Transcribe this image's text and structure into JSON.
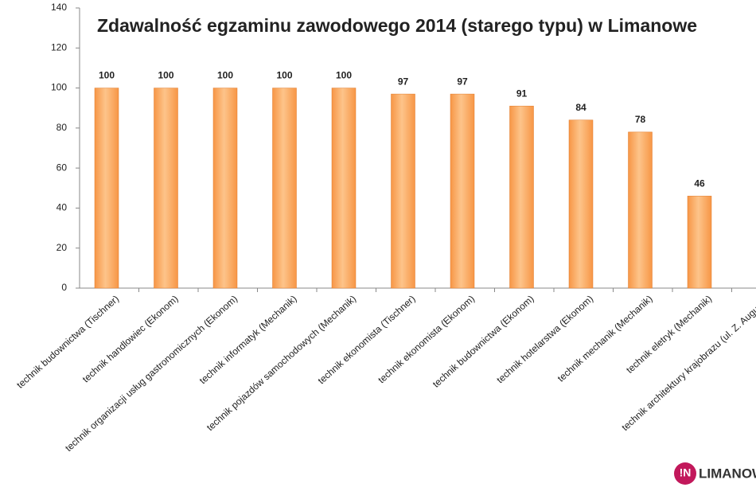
{
  "chart_data": {
    "type": "bar",
    "title": "Zdawalność egzaminu zawodowego 2014 (starego typu)  w Limanowe",
    "categories": [
      "technik budownictwa (Tischner)",
      "technik handlowiec (Ekonom)",
      "technik organizacji usług gastronomicznych (Ekonom)",
      "technik informatyk (Mechanik)",
      "technik pojazdów samochodowych (Mechanik)",
      "technik ekonomista (Tischner)",
      "technik ekonomista (Ekonom)",
      "technik budownictwa (Ekonom)",
      "technik hotelarstwa (Ekonom)",
      "technik mechanik (Mechanik)",
      "technik eletryk (Mechanik)",
      "technik architektury krajobrazu (ul. Z. Augusta)"
    ],
    "values": [
      100,
      100,
      100,
      100,
      100,
      97,
      97,
      91,
      84,
      78,
      46,
      0
    ],
    "color": "#f79646",
    "ylim": [
      0,
      140
    ],
    "yticks": [
      0,
      20,
      40,
      60,
      80,
      100,
      120,
      140
    ],
    "grid": false
  },
  "logo": {
    "mark": "!N",
    "text": "LIMANOW"
  }
}
